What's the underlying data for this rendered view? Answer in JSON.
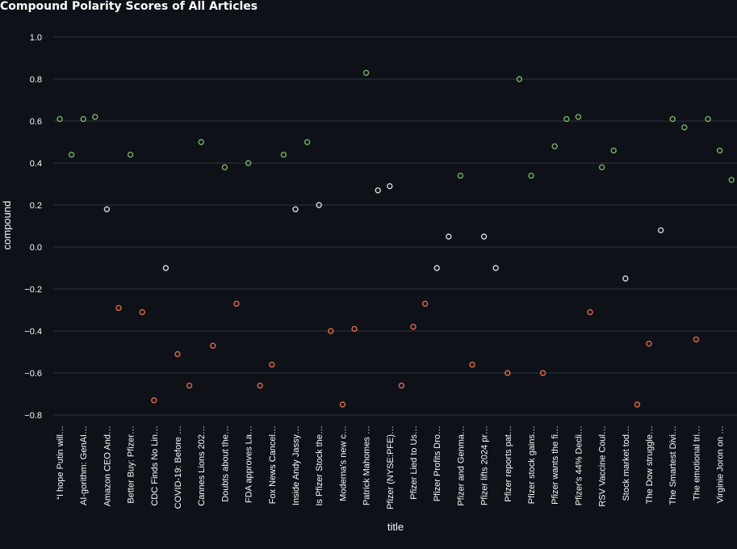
{
  "chart_data": {
    "type": "scatter",
    "title": "Compound Polarity Scores of All Articles",
    "xlabel": "title",
    "ylabel": "compound",
    "ylim": [
      -0.85,
      1.05
    ],
    "yticks": [
      "1.0",
      "0.8",
      "0.6",
      "0.4",
      "0.2",
      "0.0",
      "−0.2",
      "−0.4",
      "−0.6",
      "−0.8"
    ],
    "grid": true,
    "colors": {
      "positive": "#72b365",
      "neutral": "#d3d6d3",
      "negative": "#e06848",
      "background": "#0e1117",
      "grid": "#31333f"
    },
    "x_tick_labels": [
      "“I hope Putin will…",
      "AI-gorithm: GenAI…",
      "Amazon CEO And…",
      "Better Buy: Pfizer…",
      "CDC Finds No Lin…",
      "COVID-19: Before …",
      "Cannes Lions 202…",
      "Doubts about the…",
      "FDA approves La…",
      "Fox News Cancel…",
      "Inside Andy Jassy…",
      "Is Pfizer Stock the…",
      "Moderna's new c…",
      "Patrick Mahomes …",
      "Pfizer (NYSE:PFE)…",
      "Pfizer Lied to Us…",
      "Pfizer Profits Dro…",
      "Pfizer and Genma…",
      "Pfizer lifts 2024 pr…",
      "Pfizer reports pat…",
      "Pfizer stock gains…",
      "Pfizer wants the fi…",
      "Pfizer's 44% Decli…",
      "RSV Vaccine Coul…",
      "Stock market tod…",
      "The Dow struggle…",
      "The Smartest Divi…",
      "The emotional tri…",
      "Virginie Joron on …"
    ],
    "points": [
      {
        "x": 0,
        "y": 0.61
      },
      {
        "x": 1,
        "y": 0.44
      },
      {
        "x": 2,
        "y": 0.61
      },
      {
        "x": 3,
        "y": 0.62
      },
      {
        "x": 4,
        "y": 0.18
      },
      {
        "x": 5,
        "y": -0.29
      },
      {
        "x": 6,
        "y": 0.44
      },
      {
        "x": 7,
        "y": -0.31
      },
      {
        "x": 8,
        "y": -0.73
      },
      {
        "x": 9,
        "y": -0.1
      },
      {
        "x": 10,
        "y": -0.51
      },
      {
        "x": 11,
        "y": -0.66
      },
      {
        "x": 12,
        "y": 0.5
      },
      {
        "x": 13,
        "y": -0.47
      },
      {
        "x": 14,
        "y": 0.38
      },
      {
        "x": 15,
        "y": -0.27
      },
      {
        "x": 16,
        "y": 0.4
      },
      {
        "x": 17,
        "y": -0.66
      },
      {
        "x": 18,
        "y": -0.56
      },
      {
        "x": 19,
        "y": 0.44
      },
      {
        "x": 20,
        "y": 0.18
      },
      {
        "x": 21,
        "y": 0.5
      },
      {
        "x": 22,
        "y": 0.2
      },
      {
        "x": 23,
        "y": -0.4
      },
      {
        "x": 24,
        "y": -0.75
      },
      {
        "x": 25,
        "y": -0.39
      },
      {
        "x": 26,
        "y": 0.83
      },
      {
        "x": 27,
        "y": 0.27
      },
      {
        "x": 28,
        "y": 0.29
      },
      {
        "x": 29,
        "y": -0.66
      },
      {
        "x": 30,
        "y": -0.38
      },
      {
        "x": 31,
        "y": -0.27
      },
      {
        "x": 32,
        "y": -0.1
      },
      {
        "x": 33,
        "y": 0.05
      },
      {
        "x": 34,
        "y": 0.34
      },
      {
        "x": 35,
        "y": -0.56
      },
      {
        "x": 36,
        "y": 0.05
      },
      {
        "x": 37,
        "y": -0.1
      },
      {
        "x": 38,
        "y": -0.6
      },
      {
        "x": 39,
        "y": 0.8
      },
      {
        "x": 40,
        "y": 0.34
      },
      {
        "x": 41,
        "y": -0.6
      },
      {
        "x": 42,
        "y": 0.48
      },
      {
        "x": 43,
        "y": 0.61
      },
      {
        "x": 44,
        "y": 0.62
      },
      {
        "x": 45,
        "y": -0.31
      },
      {
        "x": 46,
        "y": 0.38
      },
      {
        "x": 47,
        "y": 0.46
      },
      {
        "x": 48,
        "y": -0.15
      },
      {
        "x": 49,
        "y": -0.75
      },
      {
        "x": 50,
        "y": -0.46
      },
      {
        "x": 51,
        "y": 0.08
      },
      {
        "x": 52,
        "y": 0.61
      },
      {
        "x": 53,
        "y": 0.57
      },
      {
        "x": 54,
        "y": -0.44
      },
      {
        "x": 55,
        "y": 0.61
      },
      {
        "x": 56,
        "y": 0.46
      },
      {
        "x": 57,
        "y": 0.32
      }
    ]
  }
}
